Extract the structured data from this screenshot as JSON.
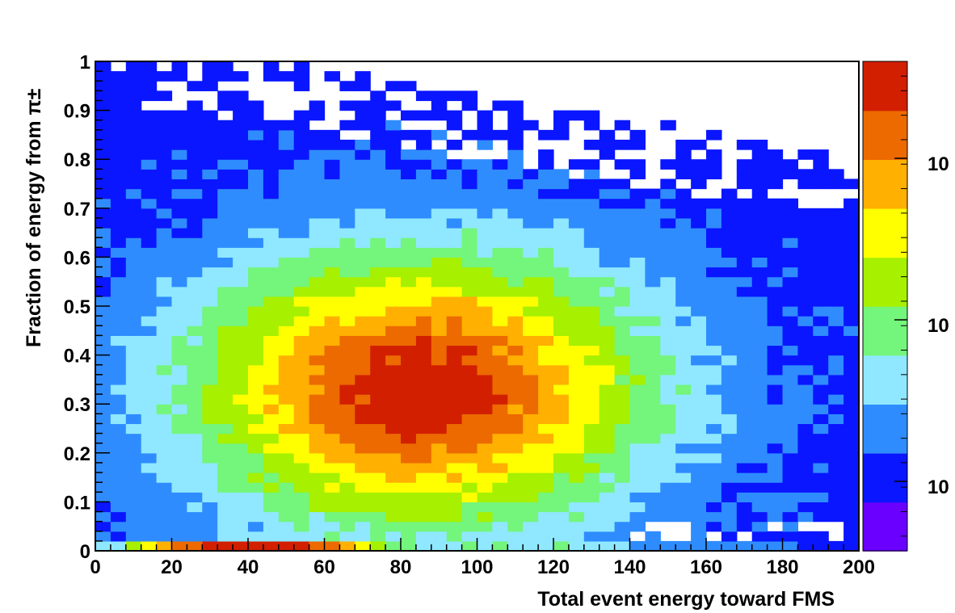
{
  "chart_data": {
    "type": "heatmap",
    "title": "",
    "xlabel": "Total event energy toward FMS",
    "ylabel": "Fraction of energy from π±",
    "xlim": [
      0,
      200
    ],
    "ylim": [
      0,
      1
    ],
    "x_bins": 50,
    "y_bins": 50,
    "x_ticks": [
      "0",
      "20",
      "40",
      "60",
      "80",
      "100",
      "120",
      "140",
      "160",
      "180",
      "200"
    ],
    "y_ticks": [
      "0",
      "0.1",
      "0.2",
      "0.3",
      "0.4",
      "0.5",
      "0.6",
      "0.7",
      "0.8",
      "0.9",
      "1"
    ],
    "z_scale": "log",
    "colorbar_labels": [
      "10",
      "10",
      "10"
    ],
    "peak_region": {
      "x": 85,
      "y": 0.33
    },
    "x_axis_edge_peak": {
      "x_range": [
        25,
        60
      ],
      "y": 0.0
    },
    "upper_boundary_fraction": {
      "at_x_0": 1.0,
      "at_x_50": 0.95,
      "at_x_100": 0.88,
      "at_x_150": 0.82,
      "at_x_200": 0.75
    },
    "colormap": [
      "#6a00ff",
      "#0a16ff",
      "#2f8cff",
      "#8fe8ff",
      "#74f57c",
      "#a6f000",
      "#ffff00",
      "#ffb000",
      "#ec6a00",
      "#d21f00"
    ],
    "grid": false
  }
}
